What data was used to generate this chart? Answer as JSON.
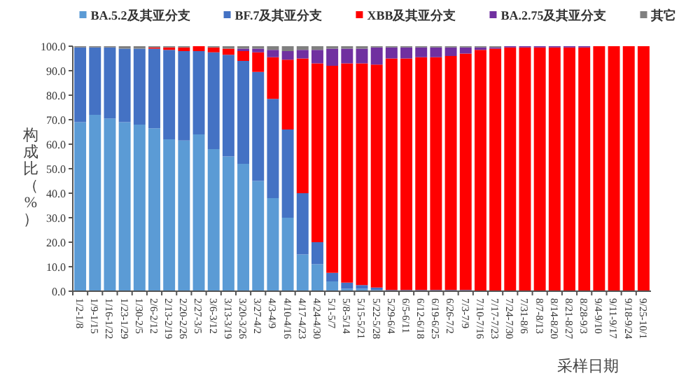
{
  "chart_data": {
    "type": "bar",
    "stacked": true,
    "legend": "top",
    "xlabel": "采样日期",
    "ylabel": "构成比（%）",
    "ylim": [
      0,
      100
    ],
    "yticks": [
      {
        "value": 0,
        "label": "0.0"
      },
      {
        "value": 10,
        "label": "10.0"
      },
      {
        "value": 20,
        "label": "20.0"
      },
      {
        "value": 30,
        "label": "30.0"
      },
      {
        "value": 40,
        "label": "40.0"
      },
      {
        "value": 50,
        "label": "50.0"
      },
      {
        "value": 60,
        "label": "60.0"
      },
      {
        "value": 70,
        "label": "70.0"
      },
      {
        "value": 80,
        "label": "80.0"
      },
      {
        "value": 90,
        "label": "90.0"
      },
      {
        "value": 100,
        "label": "100.0"
      }
    ],
    "categories": [
      "1/2-1/8",
      "1/9-1/15",
      "1/16-1/22",
      "1/23-1/29",
      "1/30-2/5",
      "2/6-2/12",
      "2/13-2/19",
      "2/20-2/26",
      "2/27-3/5",
      "3/6-3/12",
      "3/13-3/19",
      "3/20-3/26",
      "3/27-4/2",
      "4/3-4/9",
      "4/10-4/16",
      "4/17-4/23",
      "4/24-4/30",
      "5/1-5/7",
      "5/8-5/14",
      "5/15-5/21",
      "5/22-5/28",
      "5/29-6/4",
      "6/5-6/11",
      "6/12-6/18",
      "6/19-6/25",
      "6/26-7/2",
      "7/3-7/9",
      "7/10-7/16",
      "7/17-7/23",
      "7/24-7/30",
      "7/31-8/6",
      "8/7-8/13",
      "8/14-8/20",
      "8/21-8/27",
      "8/28-9/3",
      "9/4-9/10",
      "9/11-9/17",
      "9/18-9/24",
      "9/25-10/1"
    ],
    "series": [
      {
        "name": "BA.5.2及其亚分支",
        "color": "#5b9bd5",
        "values": [
          69,
          72,
          70.5,
          69,
          68,
          66.5,
          62,
          61.5,
          64,
          58,
          55,
          52,
          45,
          38,
          30,
          15,
          11,
          4,
          1,
          1,
          0.5,
          0,
          0,
          0,
          0,
          0,
          0,
          0,
          0,
          0,
          0,
          0,
          0,
          0,
          0,
          0,
          0,
          0,
          0
        ]
      },
      {
        "name": "BF.7及其亚分支",
        "color": "#4472c4",
        "values": [
          30.5,
          27.5,
          29,
          30,
          31,
          32.5,
          36.5,
          36.5,
          34,
          39.5,
          41.5,
          42,
          44.5,
          40.5,
          36,
          25,
          9,
          3.5,
          2.5,
          1.5,
          1,
          0.5,
          0.5,
          0.5,
          0.5,
          0.5,
          0.5,
          0,
          0,
          0,
          0,
          0,
          0,
          0,
          0,
          0,
          0,
          0,
          0
        ]
      },
      {
        "name": "XBB及其亚分支",
        "color": "#ff0000",
        "values": [
          0,
          0,
          0,
          0,
          0,
          0.5,
          1,
          1.5,
          2,
          2,
          2.5,
          4,
          8,
          17,
          28.5,
          55,
          73,
          84.5,
          89.5,
          90.5,
          91,
          94.5,
          94.5,
          95,
          95,
          95.5,
          96.5,
          98.5,
          99,
          99.5,
          99.5,
          99.5,
          99.5,
          99.5,
          99.5,
          100,
          100,
          100,
          100
        ]
      },
      {
        "name": "BA.2.75及其亚分支",
        "color": "#7030a0",
        "values": [
          0,
          0,
          0,
          0,
          0,
          0,
          0,
          0,
          0,
          0,
          0,
          1,
          1.5,
          3,
          3.5,
          3.5,
          5.5,
          7,
          6,
          6,
          7,
          4.5,
          4.5,
          4,
          4,
          3.5,
          2.5,
          1,
          0.5,
          0.5,
          0.5,
          0.5,
          0.5,
          0.5,
          0.5,
          0,
          0,
          0,
          0
        ]
      },
      {
        "name": "其它",
        "color": "#808080",
        "values": [
          0.5,
          0.5,
          0.5,
          1,
          1,
          0.5,
          0.5,
          0.5,
          0,
          0.5,
          1,
          1,
          1,
          1.5,
          2,
          1.5,
          1.5,
          1,
          1,
          1,
          0.5,
          0.5,
          0.5,
          0.5,
          0.5,
          0.5,
          0.5,
          0.5,
          0.5,
          0,
          0,
          0,
          0,
          0,
          0,
          0,
          0,
          0,
          0
        ]
      }
    ]
  }
}
